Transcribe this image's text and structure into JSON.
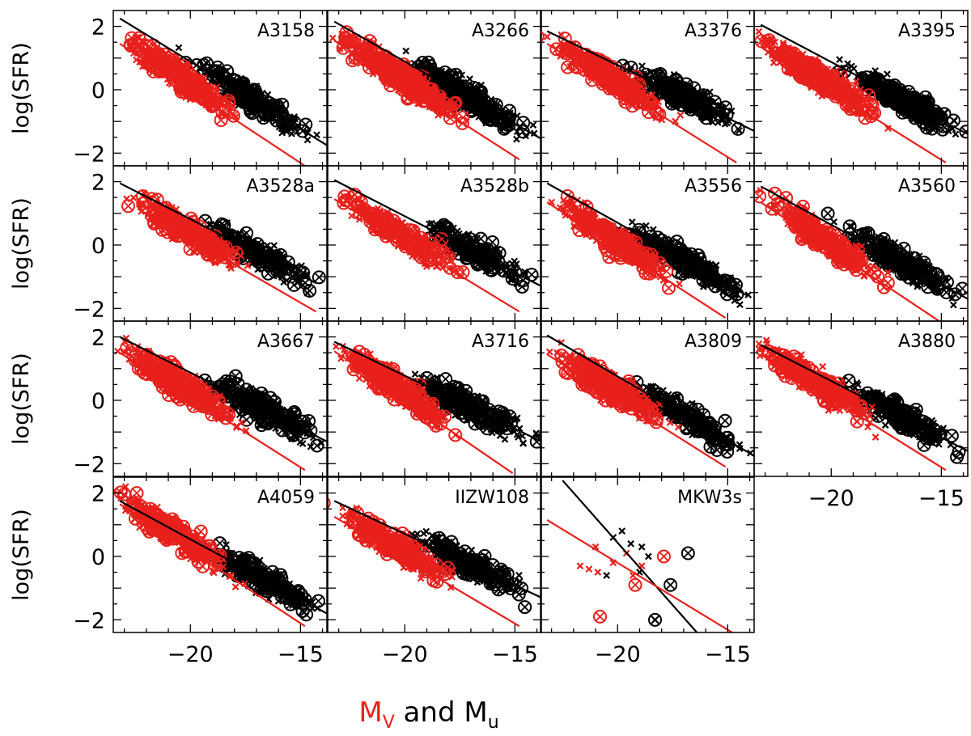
{
  "chart_data": {
    "type": "scatter",
    "title": "",
    "xlabel": {
      "part1": "M",
      "part1_sub": "V",
      "connector": " and ",
      "part2": "M",
      "part2_sub": "u"
    },
    "ylabel": "log(SFR)",
    "xlim": [
      -23.5,
      -13.8
    ],
    "ylim": [
      -2.4,
      2.5
    ],
    "x_ticks": [
      -20,
      -15
    ],
    "x_tick_labels": [
      "−20",
      "−15"
    ],
    "y_ticks": [
      2,
      0,
      -2
    ],
    "y_tick_labels": [
      "2",
      "0",
      "−2"
    ],
    "grid": false,
    "colors": {
      "MV": "#e8201c",
      "Mu": "#000000"
    },
    "legend": {
      "MV_color_meaning": "red = M_V",
      "Mu_color_meaning": "black = M_u"
    },
    "panels": [
      {
        "name": "A3158",
        "fit_u": [
          [
            -23.2,
            2.25
          ],
          [
            -13.8,
            -1.75
          ]
        ],
        "fit_v": [
          [
            -23.2,
            1.45
          ],
          [
            -14.8,
            -2.4
          ]
        ],
        "u_center": [
          -17.6,
          0.2
        ],
        "v_center": [
          -20.5,
          0.3
        ],
        "density": 1.0
      },
      {
        "name": "A3266",
        "fit_u": [
          [
            -23.2,
            2.15
          ],
          [
            -13.8,
            -1.55
          ]
        ],
        "fit_v": [
          [
            -23.2,
            1.55
          ],
          [
            -14.8,
            -2.2
          ]
        ],
        "u_center": [
          -17.8,
          0.1
        ],
        "v_center": [
          -20.3,
          0.2
        ],
        "density": 1.4
      },
      {
        "name": "A3376",
        "fit_u": [
          [
            -23.2,
            1.85
          ],
          [
            -13.8,
            -1.3
          ]
        ],
        "fit_v": [
          [
            -23.2,
            1.45
          ],
          [
            -14.6,
            -2.3
          ]
        ],
        "u_center": [
          -17.6,
          0.2
        ],
        "v_center": [
          -20.4,
          0.4
        ],
        "density": 0.9
      },
      {
        "name": "A3395",
        "fit_u": [
          [
            -23.2,
            2.05
          ],
          [
            -13.8,
            -1.4
          ]
        ],
        "fit_v": [
          [
            -23.2,
            1.35
          ],
          [
            -14.8,
            -2.3
          ]
        ],
        "u_center": [
          -17.3,
          0.1
        ],
        "v_center": [
          -20.6,
          0.2
        ],
        "density": 1.3
      },
      {
        "name": "A3528a",
        "fit_u": [
          [
            -23.2,
            1.95
          ],
          [
            -14.3,
            -1.2
          ]
        ],
        "fit_v": [
          [
            -22.4,
            1.15
          ],
          [
            -14.3,
            -2.1
          ]
        ],
        "u_center": [
          -17.5,
          0.0
        ],
        "v_center": [
          -20.2,
          0.1
        ],
        "density": 0.9
      },
      {
        "name": "A3528b",
        "fit_u": [
          [
            -23.2,
            2.05
          ],
          [
            -13.8,
            -1.3
          ]
        ],
        "fit_v": [
          [
            -23.2,
            1.45
          ],
          [
            -14.8,
            -2.1
          ]
        ],
        "u_center": [
          -17.2,
          0.0
        ],
        "v_center": [
          -20.3,
          0.0
        ],
        "density": 0.8
      },
      {
        "name": "A3556",
        "fit_u": [
          [
            -23.2,
            1.95
          ],
          [
            -14.1,
            -1.6
          ]
        ],
        "fit_v": [
          [
            -23.2,
            1.35
          ],
          [
            -15.1,
            -2.3
          ]
        ],
        "u_center": [
          -17.5,
          0.1
        ],
        "v_center": [
          -20.2,
          0.2
        ],
        "density": 1.0
      },
      {
        "name": "A3560",
        "fit_u": [
          [
            -23.2,
            1.85
          ],
          [
            -13.8,
            -1.7
          ]
        ],
        "fit_v": [
          [
            -23.2,
            1.35
          ],
          [
            -15.1,
            -2.4
          ]
        ],
        "u_center": [
          -17.4,
          0.1
        ],
        "v_center": [
          -20.3,
          0.2
        ],
        "density": 1.0
      },
      {
        "name": "A3667",
        "fit_u": [
          [
            -23.2,
            2.0
          ],
          [
            -13.8,
            -1.3
          ]
        ],
        "fit_v": [
          [
            -23.2,
            1.5
          ],
          [
            -14.8,
            -2.2
          ]
        ],
        "u_center": [
          -17.3,
          0.1
        ],
        "v_center": [
          -20.5,
          0.2
        ],
        "density": 1.2
      },
      {
        "name": "A3716",
        "fit_u": [
          [
            -23.2,
            1.85
          ],
          [
            -13.8,
            -1.3
          ]
        ],
        "fit_v": [
          [
            -23.2,
            1.55
          ],
          [
            -15.1,
            -2.3
          ]
        ],
        "u_center": [
          -17.6,
          0.1
        ],
        "v_center": [
          -20.4,
          0.3
        ],
        "density": 1.1
      },
      {
        "name": "A3809",
        "fit_u": [
          [
            -23.2,
            2.05
          ],
          [
            -13.8,
            -1.75
          ]
        ],
        "fit_v": [
          [
            -23.2,
            1.45
          ],
          [
            -15.1,
            -2.1
          ]
        ],
        "u_center": [
          -17.5,
          0.1
        ],
        "v_center": [
          -20.3,
          0.1
        ],
        "density": 1.0
      },
      {
        "name": "A3880",
        "fit_u": [
          [
            -23.2,
            1.75
          ],
          [
            -13.8,
            -1.6
          ]
        ],
        "fit_v": [
          [
            -23.2,
            1.45
          ],
          [
            -14.8,
            -2.2
          ]
        ],
        "u_center": [
          -17.4,
          0.0
        ],
        "v_center": [
          -20.6,
          0.2
        ],
        "density": 1.0
      },
      {
        "name": "A4059",
        "fit_u": [
          [
            -23.2,
            1.75
          ],
          [
            -13.8,
            -1.8
          ]
        ],
        "fit_v": [
          [
            -23.2,
            1.65
          ],
          [
            -14.8,
            -2.2
          ]
        ],
        "u_center": [
          -17.3,
          0.1
        ],
        "v_center": [
          -20.6,
          0.3
        ],
        "density": 1.0
      },
      {
        "name": "IIZW108",
        "fit_u": [
          [
            -23.2,
            1.75
          ],
          [
            -13.8,
            -1.3
          ]
        ],
        "fit_v": [
          [
            -23.2,
            1.25
          ],
          [
            -14.8,
            -2.2
          ]
        ],
        "u_center": [
          -17.6,
          0.0
        ],
        "v_center": [
          -20.3,
          0.0
        ],
        "density": 0.9
      },
      {
        "name": "MKW3s",
        "fit_u": [
          [
            -22.5,
            2.4
          ],
          [
            -16.4,
            -2.4
          ]
        ],
        "fit_v": [
          [
            -23.2,
            1.15
          ],
          [
            -14.8,
            -2.4
          ]
        ],
        "u_points": [
          [
            -20.2,
            0.6
          ],
          [
            -19.4,
            0.4
          ],
          [
            -20.5,
            -0.6
          ],
          [
            -18.9,
            0.3
          ],
          [
            -18.6,
            0.0
          ],
          [
            -19.0,
            -0.5
          ],
          [
            -19.8,
            0.8
          ],
          [
            -18.3,
            -2.0
          ]
        ],
        "u_circles": [
          [
            -18.3,
            -2.0
          ],
          [
            -16.8,
            0.1
          ],
          [
            -17.6,
            -0.9
          ]
        ],
        "v_points": [
          [
            -21.7,
            -0.3
          ],
          [
            -20.2,
            -0.2
          ],
          [
            -21.0,
            0.3
          ],
          [
            -19.6,
            0.1
          ],
          [
            -20.9,
            -0.5
          ],
          [
            -18.9,
            -0.3
          ],
          [
            -19.3,
            -0.6
          ],
          [
            -21.3,
            -0.4
          ]
        ],
        "v_circles": [
          [
            -17.9,
            0.0
          ],
          [
            -19.2,
            -0.9
          ],
          [
            -20.8,
            -1.9
          ]
        ]
      }
    ]
  }
}
